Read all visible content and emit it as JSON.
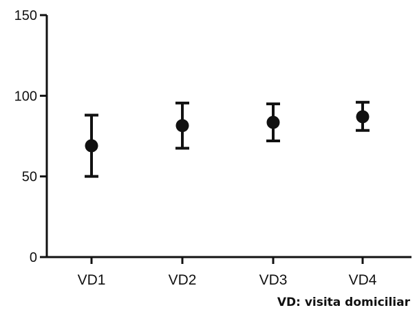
{
  "chart_data": {
    "type": "scatter",
    "categories": [
      "VD1",
      "VD2",
      "VD3",
      "VD4"
    ],
    "series": [
      {
        "values": [
          69,
          81.5,
          83.5,
          87
        ],
        "error_low": [
          50,
          67.5,
          72,
          78.5
        ],
        "error_high": [
          88,
          95.5,
          95,
          96
        ]
      }
    ],
    "yticks": [
      "0",
      "50",
      "100",
      "150"
    ],
    "ylim": [
      0,
      150
    ],
    "xlabel": "",
    "ylabel": "",
    "title": "",
    "grid": false,
    "note": "VD: visita domiciliar",
    "marker_color": "#111111"
  }
}
